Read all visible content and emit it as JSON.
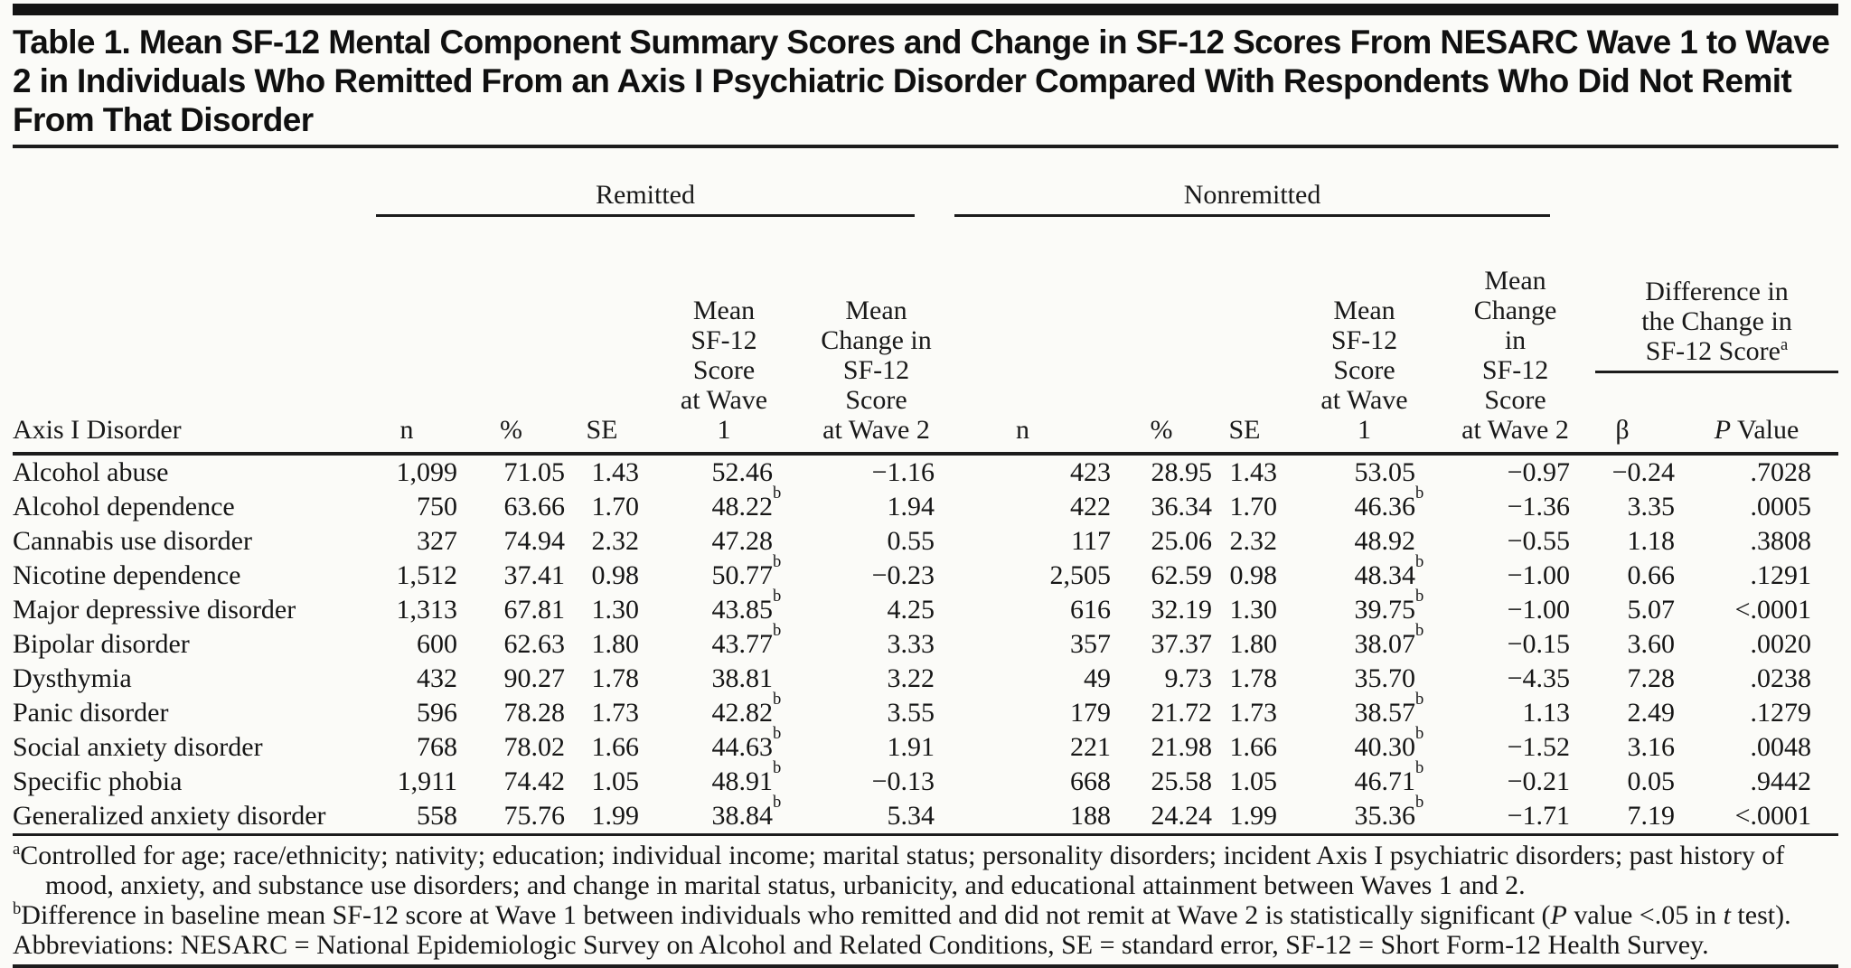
{
  "title": "Table 1. Mean SF-12 Mental Component Summary Scores and Change in SF-12 Scores From NESARC Wave 1 to Wave 2 in Individuals Who Remitted From an Axis I Psychiatric Disorder Compared With Respondents Who Did Not Remit From That Disorder",
  "table": {
    "row_header": "Axis I Disorder",
    "groups": [
      {
        "label": "Remitted"
      },
      {
        "label": "Nonremitted"
      },
      {
        "label": "Difference in\nthe Change in\nSF-12 Score^{a}"
      }
    ],
    "columns": {
      "n": "n",
      "pct": "%",
      "se": "SE",
      "mean_w1": "Mean\nSF-12 Score\nat Wave 1",
      "change_w2": "Mean\nChange in\nSF-12 Score\nat Wave 2",
      "beta": "β",
      "p": "_P_ Value"
    },
    "rows": [
      {
        "disorder": "Alcohol abuse",
        "remitted": [
          "1,099",
          "71.05",
          "1.43",
          "52.46",
          "−1.16"
        ],
        "nonremitted": [
          "423",
          "28.95",
          "1.43",
          "53.05",
          "−0.97"
        ],
        "beta": "−0.24",
        "p": ".7028"
      },
      {
        "disorder": "Alcohol dependence",
        "remitted": [
          "750",
          "63.66",
          "1.70",
          "48.22^{b}",
          "1.94"
        ],
        "nonremitted": [
          "422",
          "36.34",
          "1.70",
          "46.36^{b}",
          "−1.36"
        ],
        "beta": "3.35",
        "p": ".0005"
      },
      {
        "disorder": "Cannabis use disorder",
        "remitted": [
          "327",
          "74.94",
          "2.32",
          "47.28",
          "0.55"
        ],
        "nonremitted": [
          "117",
          "25.06",
          "2.32",
          "48.92",
          "−0.55"
        ],
        "beta": "1.18",
        "p": ".3808"
      },
      {
        "disorder": "Nicotine dependence",
        "remitted": [
          "1,512",
          "37.41",
          "0.98",
          "50.77^{b}",
          "−0.23"
        ],
        "nonremitted": [
          "2,505",
          "62.59",
          "0.98",
          "48.34^{b}",
          "−1.00"
        ],
        "beta": "0.66",
        "p": ".1291"
      },
      {
        "disorder": "Major depressive disorder",
        "remitted": [
          "1,313",
          "67.81",
          "1.30",
          "43.85^{b}",
          "4.25"
        ],
        "nonremitted": [
          "616",
          "32.19",
          "1.30",
          "39.75^{b}",
          "−1.00"
        ],
        "beta": "5.07",
        "p": "<.0001"
      },
      {
        "disorder": "Bipolar disorder",
        "remitted": [
          "600",
          "62.63",
          "1.80",
          "43.77^{b}",
          "3.33"
        ],
        "nonremitted": [
          "357",
          "37.37",
          "1.80",
          "38.07^{b}",
          "−0.15"
        ],
        "beta": "3.60",
        "p": ".0020"
      },
      {
        "disorder": "Dysthymia",
        "remitted": [
          "432",
          "90.27",
          "1.78",
          "38.81",
          "3.22"
        ],
        "nonremitted": [
          "49",
          "9.73",
          "1.78",
          "35.70",
          "−4.35"
        ],
        "beta": "7.28",
        "p": ".0238"
      },
      {
        "disorder": "Panic disorder",
        "remitted": [
          "596",
          "78.28",
          "1.73",
          "42.82^{b}",
          "3.55"
        ],
        "nonremitted": [
          "179",
          "21.72",
          "1.73",
          "38.57^{b}",
          "1.13"
        ],
        "beta": "2.49",
        "p": ".1279"
      },
      {
        "disorder": "Social anxiety disorder",
        "remitted": [
          "768",
          "78.02",
          "1.66",
          "44.63^{b}",
          "1.91"
        ],
        "nonremitted": [
          "221",
          "21.98",
          "1.66",
          "40.30^{b}",
          "−1.52"
        ],
        "beta": "3.16",
        "p": ".0048"
      },
      {
        "disorder": "Specific phobia",
        "remitted": [
          "1,911",
          "74.42",
          "1.05",
          "48.91^{b}",
          "−0.13"
        ],
        "nonremitted": [
          "668",
          "25.58",
          "1.05",
          "46.71^{b}",
          "−0.21"
        ],
        "beta": "0.05",
        "p": ".9442"
      },
      {
        "disorder": "Generalized anxiety disorder",
        "remitted": [
          "558",
          "75.76",
          "1.99",
          "38.84^{b}",
          "5.34"
        ],
        "nonremitted": [
          "188",
          "24.24",
          "1.99",
          "35.36^{b}",
          "−1.71"
        ],
        "beta": "7.19",
        "p": "<.0001"
      }
    ]
  },
  "footnotes": [
    "^{a}Controlled for age; race/ethnicity; nativity; education; individual income; marital status; personality disorders; incident Axis I psychiatric disorders; past history of mood, anxiety, and substance use disorders; and change in marital status, urbanicity, and educational attainment between Waves 1 and 2.",
    "^{b}Difference in baseline mean SF-12 score at Wave 1 between individuals who remitted and did not remit at Wave 2 is statistically significant (_P_ value <.05 in _t_ test).",
    "Abbreviations: NESARC = National Epidemiologic Survey on Alcohol and Related Conditions, SE = standard error, SF-12 = Short Form-12 Health Survey."
  ]
}
